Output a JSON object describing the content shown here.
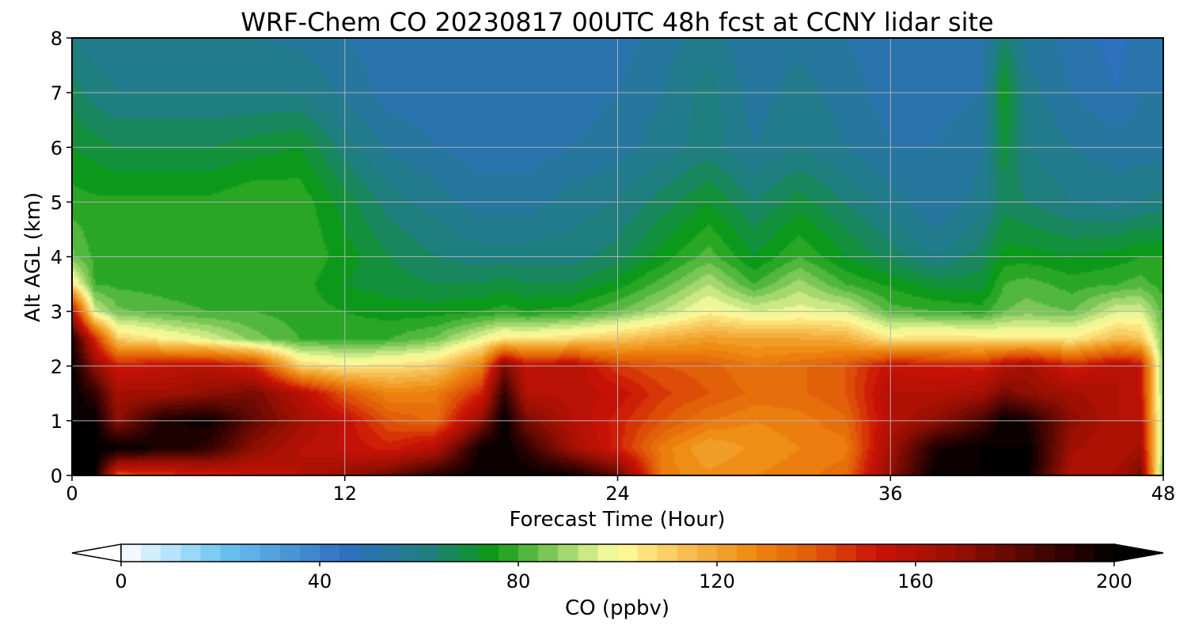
{
  "chart_data": {
    "type": "contourf",
    "title": "WRF-Chem CO  20230817 00UTC 48h fcst at CCNY lidar site",
    "xlabel": "Forecast Time (Hour)",
    "ylabel": "Alt AGL (km)",
    "xlim": [
      0,
      48
    ],
    "ylim": [
      0,
      8
    ],
    "xticks": [
      0,
      12,
      24,
      36,
      48
    ],
    "yticks": [
      0,
      1,
      2,
      3,
      4,
      5,
      6,
      7,
      8
    ],
    "grid": true,
    "colorbar": {
      "label": "CO  (ppbv)",
      "range": [
        0,
        200
      ],
      "ticks": [
        0,
        40,
        80,
        120,
        160,
        200
      ],
      "extend": "both",
      "colors": [
        {
          "value": 0,
          "color": "#ffffff"
        },
        {
          "value": 20,
          "color": "#6dc6f2"
        },
        {
          "value": 45,
          "color": "#2e6fc0"
        },
        {
          "value": 62,
          "color": "#1f7f7f"
        },
        {
          "value": 75,
          "color": "#0a9a12"
        },
        {
          "value": 92,
          "color": "#b8e07a"
        },
        {
          "value": 100,
          "color": "#ffffa0"
        },
        {
          "value": 112,
          "color": "#f8c55a"
        },
        {
          "value": 127,
          "color": "#ee8a10"
        },
        {
          "value": 140,
          "color": "#e05808"
        },
        {
          "value": 152,
          "color": "#cc1206"
        },
        {
          "value": 168,
          "color": "#981003"
        },
        {
          "value": 188,
          "color": "#3a0402"
        },
        {
          "value": 200,
          "color": "#000000"
        }
      ]
    },
    "x": [
      0,
      1,
      2,
      4,
      6,
      8,
      10,
      12,
      14,
      16,
      18,
      19,
      20,
      22,
      24,
      26,
      28,
      30,
      32,
      34,
      36,
      38,
      40,
      41,
      42,
      44,
      46,
      47,
      48
    ],
    "y": [
      0,
      0.5,
      1,
      1.5,
      2,
      2.5,
      3,
      3.5,
      4,
      5,
      6,
      7,
      8
    ],
    "values": [
      [
        200,
        200,
        140,
        145,
        150,
        155,
        160,
        168,
        178,
        192,
        200,
        200,
        200,
        198,
        180,
        130,
        125,
        128,
        130,
        135,
        170,
        200,
        200,
        200,
        200,
        160,
        165,
        175,
        80
      ],
      [
        200,
        200,
        200,
        195,
        190,
        170,
        160,
        155,
        150,
        160,
        198,
        200,
        190,
        165,
        150,
        130,
        120,
        125,
        128,
        130,
        165,
        195,
        200,
        200,
        200,
        165,
        160,
        165,
        85
      ],
      [
        200,
        200,
        170,
        195,
        198,
        180,
        165,
        155,
        140,
        135,
        170,
        200,
        175,
        160,
        150,
        140,
        132,
        128,
        130,
        135,
        160,
        170,
        185,
        200,
        195,
        170,
        160,
        160,
        85
      ],
      [
        200,
        190,
        165,
        165,
        170,
        175,
        160,
        140,
        128,
        130,
        150,
        190,
        160,
        158,
        155,
        145,
        140,
        135,
        135,
        140,
        160,
        160,
        165,
        175,
        170,
        165,
        160,
        155,
        85
      ],
      [
        200,
        170,
        152,
        155,
        158,
        150,
        110,
        104,
        106,
        110,
        130,
        175,
        155,
        160,
        145,
        140,
        138,
        132,
        135,
        140,
        155,
        152,
        150,
        160,
        165,
        150,
        160,
        155,
        85
      ],
      [
        195,
        150,
        110,
        103,
        96,
        86,
        80,
        79,
        80,
        85,
        98,
        105,
        104,
        108,
        112,
        118,
        122,
        120,
        120,
        118,
        105,
        108,
        106,
        105,
        105,
        104,
        115,
        112,
        85
      ],
      [
        160,
        95,
        85,
        82,
        80,
        80,
        78,
        76,
        74,
        74,
        76,
        78,
        76,
        78,
        84,
        92,
        102,
        96,
        98,
        96,
        82,
        80,
        78,
        84,
        86,
        84,
        96,
        96,
        82
      ],
      [
        105,
        80,
        79,
        78,
        77,
        79,
        78,
        72,
        70,
        68,
        68,
        70,
        68,
        68,
        74,
        82,
        92,
        80,
        90,
        80,
        75,
        70,
        70,
        80,
        82,
        78,
        80,
        82,
        78
      ],
      [
        85,
        79,
        79,
        80,
        80,
        80,
        80,
        74,
        68,
        64,
        62,
        62,
        62,
        62,
        66,
        74,
        82,
        72,
        80,
        72,
        66,
        60,
        66,
        74,
        74,
        72,
        74,
        76,
        76
      ],
      [
        78,
        77,
        77,
        77,
        77,
        80,
        79,
        70,
        62,
        58,
        54,
        54,
        54,
        58,
        60,
        66,
        72,
        64,
        70,
        64,
        58,
        52,
        58,
        66,
        64,
        60,
        58,
        60,
        62
      ],
      [
        72,
        70,
        68,
        68,
        68,
        70,
        72,
        62,
        55,
        52,
        50,
        50,
        50,
        52,
        54,
        58,
        62,
        56,
        60,
        56,
        52,
        52,
        55,
        70,
        60,
        56,
        54,
        54,
        54
      ],
      [
        66,
        62,
        60,
        60,
        60,
        60,
        60,
        55,
        50,
        50,
        50,
        50,
        50,
        50,
        52,
        56,
        62,
        54,
        58,
        54,
        50,
        50,
        52,
        74,
        58,
        52,
        48,
        52,
        52
      ],
      [
        60,
        58,
        58,
        58,
        58,
        56,
        55,
        52,
        50,
        50,
        50,
        50,
        50,
        50,
        50,
        54,
        58,
        52,
        55,
        52,
        50,
        50,
        50,
        64,
        55,
        50,
        46,
        50,
        50
      ]
    ]
  }
}
